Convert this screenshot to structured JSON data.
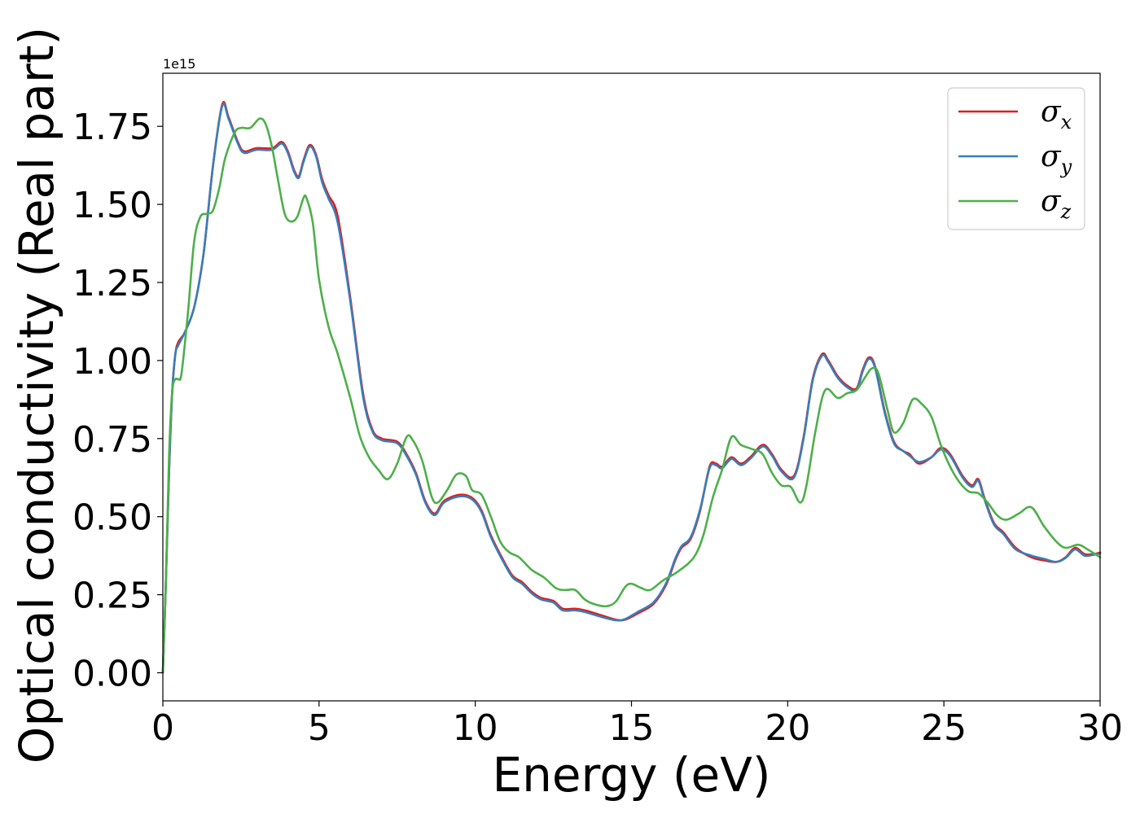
{
  "chart_data": {
    "type": "line",
    "title": "",
    "xlabel": "Energy (eV)",
    "ylabel": "Optical conductivity (Real part)",
    "y_offset_label": "1e15",
    "xlim": [
      0,
      30
    ],
    "ylim": [
      -0.09,
      1.92
    ],
    "xticks": [
      0,
      5,
      10,
      15,
      20,
      25,
      30
    ],
    "xtick_labels": [
      "0",
      "5",
      "10",
      "15",
      "20",
      "25",
      "30"
    ],
    "yticks": [
      0.0,
      0.25,
      0.5,
      0.75,
      1.0,
      1.25,
      1.5,
      1.75
    ],
    "ytick_labels": [
      "0.00",
      "0.25",
      "0.50",
      "0.75",
      "1.00",
      "1.25",
      "1.50",
      "1.75"
    ],
    "grid": false,
    "legend_position": "top-right",
    "series": [
      {
        "name": "σx",
        "symbol": "σ",
        "subscript": "x",
        "color": "#e41a1c",
        "points": [
          [
            0,
            0
          ],
          [
            0.1,
            0.3
          ],
          [
            0.2,
            0.65
          ],
          [
            0.3,
            0.9
          ],
          [
            0.4,
            1.02
          ],
          [
            0.5,
            1.06
          ],
          [
            0.7,
            1.09
          ],
          [
            1.0,
            1.17
          ],
          [
            1.3,
            1.34
          ],
          [
            1.6,
            1.62
          ],
          [
            1.9,
            1.82
          ],
          [
            2.1,
            1.78
          ],
          [
            2.4,
            1.7
          ],
          [
            2.6,
            1.67
          ],
          [
            3.0,
            1.68
          ],
          [
            3.5,
            1.68
          ],
          [
            3.8,
            1.7
          ],
          [
            4.0,
            1.67
          ],
          [
            4.2,
            1.61
          ],
          [
            4.35,
            1.59
          ],
          [
            4.5,
            1.64
          ],
          [
            4.7,
            1.69
          ],
          [
            4.9,
            1.66
          ],
          [
            5.1,
            1.58
          ],
          [
            5.3,
            1.53
          ],
          [
            5.6,
            1.46
          ],
          [
            6.0,
            1.2
          ],
          [
            6.4,
            0.9
          ],
          [
            6.7,
            0.78
          ],
          [
            7.0,
            0.75
          ],
          [
            7.5,
            0.74
          ],
          [
            7.8,
            0.7
          ],
          [
            8.1,
            0.64
          ],
          [
            8.4,
            0.55
          ],
          [
            8.7,
            0.51
          ],
          [
            9.0,
            0.55
          ],
          [
            9.5,
            0.57
          ],
          [
            9.9,
            0.56
          ],
          [
            10.2,
            0.52
          ],
          [
            10.5,
            0.44
          ],
          [
            10.9,
            0.36
          ],
          [
            11.2,
            0.31
          ],
          [
            11.5,
            0.29
          ],
          [
            11.8,
            0.26
          ],
          [
            12.1,
            0.24
          ],
          [
            12.5,
            0.23
          ],
          [
            12.8,
            0.205
          ],
          [
            13.2,
            0.205
          ],
          [
            13.5,
            0.2
          ],
          [
            14.0,
            0.185
          ],
          [
            14.5,
            0.17
          ],
          [
            14.8,
            0.17
          ],
          [
            15.2,
            0.19
          ],
          [
            15.7,
            0.22
          ],
          [
            16.1,
            0.28
          ],
          [
            16.4,
            0.36
          ],
          [
            16.6,
            0.4
          ],
          [
            16.9,
            0.43
          ],
          [
            17.2,
            0.52
          ],
          [
            17.5,
            0.66
          ],
          [
            17.7,
            0.67
          ],
          [
            17.9,
            0.66
          ],
          [
            18.2,
            0.69
          ],
          [
            18.5,
            0.67
          ],
          [
            18.8,
            0.69
          ],
          [
            19.2,
            0.73
          ],
          [
            19.5,
            0.7
          ],
          [
            19.8,
            0.65
          ],
          [
            20.2,
            0.63
          ],
          [
            20.5,
            0.75
          ],
          [
            20.8,
            0.94
          ],
          [
            21.1,
            1.02
          ],
          [
            21.3,
            1.0
          ],
          [
            21.6,
            0.95
          ],
          [
            21.9,
            0.92
          ],
          [
            22.2,
            0.91
          ],
          [
            22.4,
            0.97
          ],
          [
            22.6,
            1.01
          ],
          [
            22.8,
            0.98
          ],
          [
            23.1,
            0.84
          ],
          [
            23.4,
            0.74
          ],
          [
            23.7,
            0.71
          ],
          [
            23.9,
            0.7
          ],
          [
            24.2,
            0.67
          ],
          [
            24.6,
            0.69
          ],
          [
            24.9,
            0.72
          ],
          [
            25.2,
            0.7
          ],
          [
            25.6,
            0.63
          ],
          [
            25.9,
            0.6
          ],
          [
            26.1,
            0.62
          ],
          [
            26.3,
            0.56
          ],
          [
            26.6,
            0.48
          ],
          [
            26.9,
            0.45
          ],
          [
            27.3,
            0.4
          ],
          [
            27.8,
            0.37
          ],
          [
            28.2,
            0.36
          ],
          [
            28.6,
            0.355
          ],
          [
            28.9,
            0.37
          ],
          [
            29.2,
            0.4
          ],
          [
            29.5,
            0.38
          ],
          [
            29.8,
            0.38
          ],
          [
            30.0,
            0.385
          ]
        ]
      },
      {
        "name": "σy",
        "symbol": "σ",
        "subscript": "y",
        "color": "#377eb8",
        "points": [
          [
            0,
            0
          ],
          [
            0.1,
            0.3
          ],
          [
            0.2,
            0.65
          ],
          [
            0.3,
            0.9
          ],
          [
            0.4,
            1.02
          ],
          [
            0.5,
            1.05
          ],
          [
            0.7,
            1.09
          ],
          [
            1.0,
            1.17
          ],
          [
            1.3,
            1.34
          ],
          [
            1.6,
            1.62
          ],
          [
            1.9,
            1.815
          ],
          [
            2.1,
            1.775
          ],
          [
            2.4,
            1.695
          ],
          [
            2.6,
            1.665
          ],
          [
            3.0,
            1.675
          ],
          [
            3.5,
            1.675
          ],
          [
            3.8,
            1.695
          ],
          [
            4.0,
            1.665
          ],
          [
            4.2,
            1.605
          ],
          [
            4.35,
            1.585
          ],
          [
            4.5,
            1.635
          ],
          [
            4.7,
            1.685
          ],
          [
            4.9,
            1.655
          ],
          [
            5.1,
            1.57
          ],
          [
            5.3,
            1.52
          ],
          [
            5.6,
            1.44
          ],
          [
            6.0,
            1.19
          ],
          [
            6.4,
            0.89
          ],
          [
            6.7,
            0.775
          ],
          [
            7.0,
            0.745
          ],
          [
            7.5,
            0.735
          ],
          [
            7.8,
            0.695
          ],
          [
            8.1,
            0.635
          ],
          [
            8.4,
            0.545
          ],
          [
            8.7,
            0.505
          ],
          [
            9.0,
            0.545
          ],
          [
            9.5,
            0.565
          ],
          [
            9.9,
            0.555
          ],
          [
            10.2,
            0.515
          ],
          [
            10.5,
            0.435
          ],
          [
            10.9,
            0.355
          ],
          [
            11.2,
            0.305
          ],
          [
            11.5,
            0.285
          ],
          [
            11.8,
            0.255
          ],
          [
            12.1,
            0.235
          ],
          [
            12.5,
            0.225
          ],
          [
            12.8,
            0.2
          ],
          [
            13.2,
            0.2
          ],
          [
            13.5,
            0.195
          ],
          [
            14.0,
            0.18
          ],
          [
            14.5,
            0.168
          ],
          [
            14.8,
            0.172
          ],
          [
            15.2,
            0.195
          ],
          [
            15.7,
            0.225
          ],
          [
            16.1,
            0.285
          ],
          [
            16.4,
            0.365
          ],
          [
            16.6,
            0.405
          ],
          [
            16.9,
            0.435
          ],
          [
            17.2,
            0.525
          ],
          [
            17.5,
            0.655
          ],
          [
            17.7,
            0.665
          ],
          [
            17.9,
            0.655
          ],
          [
            18.2,
            0.685
          ],
          [
            18.5,
            0.665
          ],
          [
            18.8,
            0.685
          ],
          [
            19.2,
            0.725
          ],
          [
            19.5,
            0.695
          ],
          [
            19.8,
            0.645
          ],
          [
            20.2,
            0.625
          ],
          [
            20.5,
            0.745
          ],
          [
            20.8,
            0.935
          ],
          [
            21.1,
            1.015
          ],
          [
            21.3,
            0.995
          ],
          [
            21.6,
            0.945
          ],
          [
            21.9,
            0.915
          ],
          [
            22.2,
            0.905
          ],
          [
            22.4,
            0.965
          ],
          [
            22.6,
            1.005
          ],
          [
            22.8,
            0.975
          ],
          [
            23.1,
            0.835
          ],
          [
            23.4,
            0.735
          ],
          [
            23.7,
            0.71
          ],
          [
            23.9,
            0.695
          ],
          [
            24.2,
            0.675
          ],
          [
            24.6,
            0.69
          ],
          [
            24.9,
            0.715
          ],
          [
            25.2,
            0.695
          ],
          [
            25.6,
            0.625
          ],
          [
            25.9,
            0.595
          ],
          [
            26.1,
            0.615
          ],
          [
            26.3,
            0.555
          ],
          [
            26.6,
            0.475
          ],
          [
            26.9,
            0.445
          ],
          [
            27.3,
            0.395
          ],
          [
            27.8,
            0.375
          ],
          [
            28.2,
            0.365
          ],
          [
            28.6,
            0.355
          ],
          [
            28.9,
            0.368
          ],
          [
            29.2,
            0.395
          ],
          [
            29.5,
            0.375
          ],
          [
            29.8,
            0.378
          ],
          [
            30.0,
            0.382
          ]
        ]
      },
      {
        "name": "σz",
        "symbol": "σ",
        "subscript": "z",
        "color": "#4daf4a",
        "points": [
          [
            0,
            0
          ],
          [
            0.1,
            0.3
          ],
          [
            0.2,
            0.7
          ],
          [
            0.3,
            0.9
          ],
          [
            0.4,
            0.94
          ],
          [
            0.5,
            0.94
          ],
          [
            0.6,
            0.96
          ],
          [
            0.8,
            1.15
          ],
          [
            1.0,
            1.38
          ],
          [
            1.2,
            1.46
          ],
          [
            1.4,
            1.47
          ],
          [
            1.6,
            1.48
          ],
          [
            1.8,
            1.55
          ],
          [
            2.0,
            1.65
          ],
          [
            2.3,
            1.73
          ],
          [
            2.5,
            1.745
          ],
          [
            2.8,
            1.745
          ],
          [
            3.1,
            1.775
          ],
          [
            3.3,
            1.755
          ],
          [
            3.5,
            1.68
          ],
          [
            3.7,
            1.57
          ],
          [
            3.9,
            1.47
          ],
          [
            4.1,
            1.445
          ],
          [
            4.3,
            1.46
          ],
          [
            4.5,
            1.52
          ],
          [
            4.6,
            1.52
          ],
          [
            4.8,
            1.44
          ],
          [
            5.0,
            1.26
          ],
          [
            5.3,
            1.11
          ],
          [
            5.6,
            1.02
          ],
          [
            6.0,
            0.88
          ],
          [
            6.3,
            0.76
          ],
          [
            6.6,
            0.69
          ],
          [
            6.9,
            0.65
          ],
          [
            7.2,
            0.62
          ],
          [
            7.5,
            0.67
          ],
          [
            7.8,
            0.755
          ],
          [
            8.0,
            0.745
          ],
          [
            8.3,
            0.68
          ],
          [
            8.6,
            0.565
          ],
          [
            8.8,
            0.545
          ],
          [
            9.1,
            0.585
          ],
          [
            9.4,
            0.635
          ],
          [
            9.7,
            0.63
          ],
          [
            9.9,
            0.585
          ],
          [
            10.2,
            0.57
          ],
          [
            10.5,
            0.5
          ],
          [
            10.8,
            0.42
          ],
          [
            11.1,
            0.385
          ],
          [
            11.4,
            0.37
          ],
          [
            11.8,
            0.33
          ],
          [
            12.2,
            0.305
          ],
          [
            12.6,
            0.27
          ],
          [
            12.9,
            0.265
          ],
          [
            13.2,
            0.265
          ],
          [
            13.5,
            0.235
          ],
          [
            13.8,
            0.22
          ],
          [
            14.2,
            0.213
          ],
          [
            14.5,
            0.228
          ],
          [
            14.8,
            0.275
          ],
          [
            15.0,
            0.285
          ],
          [
            15.3,
            0.272
          ],
          [
            15.6,
            0.265
          ],
          [
            16.0,
            0.295
          ],
          [
            16.5,
            0.325
          ],
          [
            17.0,
            0.37
          ],
          [
            17.3,
            0.44
          ],
          [
            17.6,
            0.56
          ],
          [
            17.9,
            0.65
          ],
          [
            18.2,
            0.755
          ],
          [
            18.5,
            0.73
          ],
          [
            18.9,
            0.715
          ],
          [
            19.2,
            0.7
          ],
          [
            19.5,
            0.64
          ],
          [
            19.8,
            0.6
          ],
          [
            20.1,
            0.595
          ],
          [
            20.4,
            0.545
          ],
          [
            20.6,
            0.6
          ],
          [
            20.9,
            0.78
          ],
          [
            21.2,
            0.905
          ],
          [
            21.6,
            0.88
          ],
          [
            21.9,
            0.895
          ],
          [
            22.2,
            0.905
          ],
          [
            22.5,
            0.95
          ],
          [
            22.7,
            0.975
          ],
          [
            22.9,
            0.96
          ],
          [
            23.2,
            0.84
          ],
          [
            23.4,
            0.77
          ],
          [
            23.7,
            0.8
          ],
          [
            24.0,
            0.875
          ],
          [
            24.3,
            0.86
          ],
          [
            24.6,
            0.82
          ],
          [
            24.9,
            0.73
          ],
          [
            25.2,
            0.66
          ],
          [
            25.5,
            0.61
          ],
          [
            25.8,
            0.58
          ],
          [
            26.1,
            0.575
          ],
          [
            26.4,
            0.545
          ],
          [
            26.7,
            0.505
          ],
          [
            27.0,
            0.49
          ],
          [
            27.4,
            0.51
          ],
          [
            27.8,
            0.53
          ],
          [
            28.2,
            0.47
          ],
          [
            28.6,
            0.42
          ],
          [
            28.9,
            0.4
          ],
          [
            29.3,
            0.41
          ],
          [
            29.6,
            0.395
          ],
          [
            30.0,
            0.37
          ]
        ]
      }
    ]
  }
}
